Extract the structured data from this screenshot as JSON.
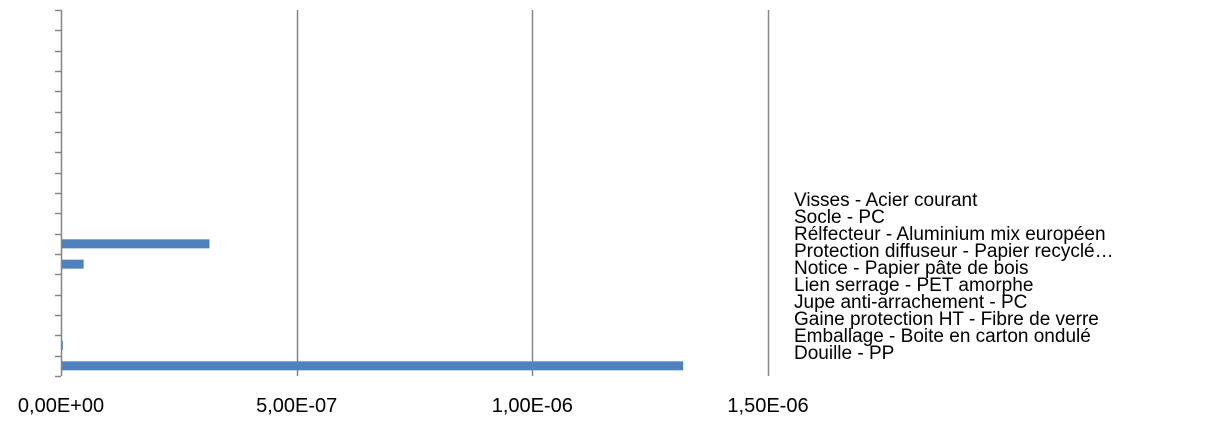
{
  "chart_data": {
    "type": "bar",
    "orientation": "horizontal",
    "title": "",
    "xlabel": "",
    "ylabel": "",
    "xlim": [
      0,
      1.5e-06
    ],
    "x_ticks": [
      0,
      5e-07,
      1e-06,
      1.5e-06
    ],
    "x_tick_labels": [
      "0,00E+00",
      "5,00E-07",
      "1,00E-06",
      "1,50E-06"
    ],
    "grid": "vertical major gridlines",
    "legend_position": "right",
    "category_slots": 18,
    "bar_color": "#4F81BD",
    "series": [
      {
        "values": [
          1.32e-06,
          4e-09,
          0,
          0,
          0,
          4.8e-08,
          3.15e-07,
          0,
          0,
          0,
          0,
          0,
          0,
          0,
          0,
          0,
          0,
          0
        ]
      }
    ],
    "legend_entries": [
      "Visses - Acier courant",
      "Socle - PC",
      "Rélfecteur - Aluminium mix européen",
      "Protection diffuseur - Papier recyclé…",
      "Notice - Papier pâte de bois",
      "Lien serrage - PET amorphe",
      "Jupe anti-arrachement - PC",
      "Gaine protection HT - Fibre de verre",
      "Emballage - Boite en carton ondulé",
      "Douille - PP"
    ]
  }
}
